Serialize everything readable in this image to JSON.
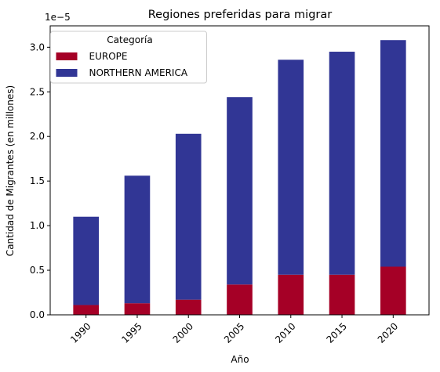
{
  "chart_data": {
    "type": "bar",
    "stacked": true,
    "title": "Regiones preferidas para migrar",
    "xlabel": "Año",
    "ylabel": "Cantidad de Migrantes (en millones)",
    "offset_text": "1e−5",
    "categories": [
      "1990",
      "1995",
      "2000",
      "2005",
      "2010",
      "2015",
      "2020"
    ],
    "y_tick_labels": [
      "0.0",
      "0.5",
      "1.0",
      "1.5",
      "2.0",
      "2.5",
      "3.0"
    ],
    "y_tick_values": [
      0.0,
      0.5,
      1.0,
      1.5,
      2.0,
      2.5,
      3.0
    ],
    "ylim": [
      0,
      3.24
    ],
    "y_scale_multiplier": 1e-05,
    "legend": {
      "title": "Categoría",
      "placement": "upper-left"
    },
    "series": [
      {
        "name": "EUROPE",
        "color": "#a50026",
        "values": [
          0.11,
          0.13,
          0.17,
          0.34,
          0.45,
          0.45,
          0.54
        ]
      },
      {
        "name": "NORTHERN AMERICA",
        "color": "#313695",
        "values": [
          0.99,
          1.43,
          1.86,
          2.1,
          2.41,
          2.5,
          2.54
        ]
      }
    ]
  }
}
